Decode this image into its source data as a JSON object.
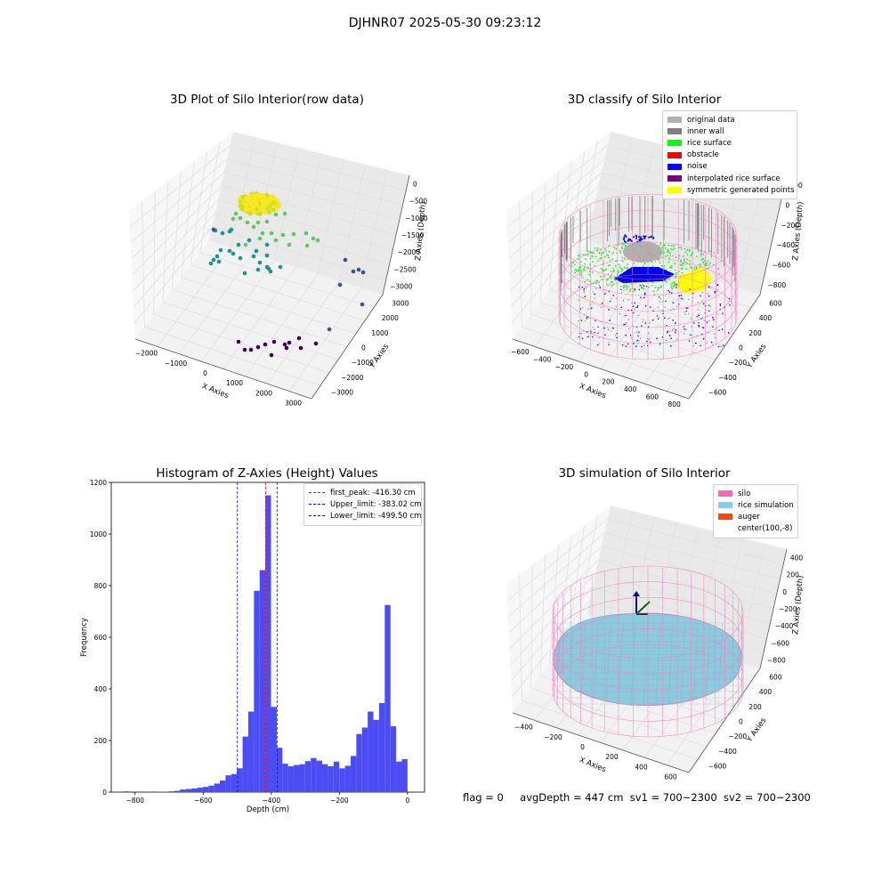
{
  "header": {
    "title": "DJHNR07 2025-05-30 09:23:12"
  },
  "colors": {
    "pane": "#f2f2f2",
    "grid": "#e2e2e2",
    "pink": "#f77fbe",
    "hist": "#4c4cf5",
    "viridis": [
      "#440154",
      "#3b528b",
      "#21918c",
      "#5ec962",
      "#fde725"
    ]
  },
  "panel1": {
    "title": "3D Plot of Silo Interior(row data)",
    "xlabel": "X Axies",
    "ylabel": "Y Axies",
    "zlabel": "Z Axies (Depth)",
    "xticks": [
      "−2000",
      "−1000",
      "0",
      "1000",
      "2000",
      "3000"
    ],
    "yticks": [
      "3000",
      "2000",
      "1000",
      "0",
      "−1000",
      "−2000",
      "−3000"
    ],
    "zticks": [
      "0",
      "−500",
      "−1000",
      "−1500",
      "−2000",
      "−2500",
      "−3000"
    ]
  },
  "panel2": {
    "title": "3D classify of Silo Interior",
    "xlabel": "X Axies",
    "ylabel": "Y Axies",
    "zlabel": "Z Axies (Depth)",
    "xticks": [
      "−600",
      "−400",
      "−200",
      "0",
      "200",
      "400",
      "600",
      "800"
    ],
    "yticks": [
      "600",
      "400",
      "200",
      "0",
      "−200",
      "−400",
      "−600"
    ],
    "zticks": [
      "200",
      "0",
      "−200",
      "−400",
      "−600",
      "−800"
    ],
    "legend": [
      {
        "label": "original data",
        "color": "#b0b0b0"
      },
      {
        "label": "inner wall",
        "color": "#808080"
      },
      {
        "label": "rice surface",
        "color": "#00ff00"
      },
      {
        "label": "obstacle",
        "color": "#ff0000"
      },
      {
        "label": "noise",
        "color": "#0000ff"
      },
      {
        "label": "interpolated rice surface",
        "color": "#800080"
      },
      {
        "label": "symmetric generated points",
        "color": "#ffff00"
      }
    ]
  },
  "panel4": {
    "title": "3D simulation of Silo Interior",
    "xlabel": "X Axies",
    "ylabel": "Y Axies",
    "zlabel": "Z Axies (Depth)",
    "xticks": [
      "−400",
      "−200",
      "0",
      "200",
      "400",
      "600"
    ],
    "yticks": [
      "600",
      "400",
      "200",
      "0",
      "−200",
      "−400",
      "−600"
    ],
    "zticks": [
      "400",
      "200",
      "0",
      "−200",
      "−400",
      "−600",
      "−800"
    ],
    "legend": [
      {
        "label": "silo",
        "color": "#ff69b4"
      },
      {
        "label": "rice simulation",
        "color": "#87ceeb"
      },
      {
        "label": "auger",
        "color": "#ff4500"
      },
      {
        "label": "center(100,-8)",
        "color": ""
      }
    ]
  },
  "chart_data": [
    {
      "type": "bar",
      "title": "Histogram of Z-Axies (Height) Values",
      "xlabel": "Depth (cm)",
      "ylabel": "Frequency",
      "xlim": [
        -870,
        50
      ],
      "ylim": [
        0,
        1200
      ],
      "grid": false,
      "legend_position": "top-right",
      "x_ticks": [
        -800,
        -600,
        -400,
        -200,
        0
      ],
      "y_ticks": [
        0,
        200,
        400,
        600,
        800,
        1000,
        1200
      ],
      "bin_width": 16.7,
      "bin_left_edges": [
        -835,
        -818.3,
        -801.6,
        -784.9,
        -768.2,
        -751.5,
        -734.8,
        -718.1,
        -701.4,
        -684.7,
        -668,
        -651.3,
        -634.6,
        -617.9,
        -601.2,
        -584.5,
        -567.8,
        -551.1,
        -534.4,
        -517.7,
        -501,
        -484.3,
        -467.6,
        -450.9,
        -434.2,
        -417.5,
        -400.8,
        -384.1,
        -367.4,
        -350.7,
        -334,
        -317.3,
        -300.6,
        -283.9,
        -267.2,
        -250.5,
        -233.8,
        -217.1,
        -200.4,
        -183.7,
        -167,
        -150.3,
        -133.6,
        -116.9,
        -100.2,
        -83.5,
        -66.8,
        -50.1,
        -33.4,
        -16.7
      ],
      "values": [
        3,
        0,
        0,
        0,
        1,
        0,
        2,
        1,
        3,
        5,
        10,
        12,
        14,
        17,
        20,
        25,
        33,
        45,
        65,
        70,
        92,
        215,
        312,
        780,
        860,
        1150,
        330,
        172,
        110,
        100,
        105,
        108,
        120,
        132,
        122,
        108,
        100,
        118,
        92,
        102,
        140,
        225,
        250,
        312,
        280,
        345,
        725,
        255,
        118,
        128
      ],
      "reference_lines": [
        {
          "name": "first_peak: -416.30 cm",
          "x": -416.3,
          "color": "#ff0000"
        },
        {
          "name": "Upper_limit: -383.02 cm",
          "x": -383.02,
          "color": "#0000ff"
        },
        {
          "name": "Lower_limit: -499.50 cm",
          "x": -499.5,
          "color": "#0000ff"
        }
      ]
    }
  ],
  "status": {
    "flag": "flag = 0",
    "avg": "avgDepth = 447 cm",
    "sv1": "sv1 = 700~2300",
    "sv2": "sv2 = 700~2300"
  }
}
